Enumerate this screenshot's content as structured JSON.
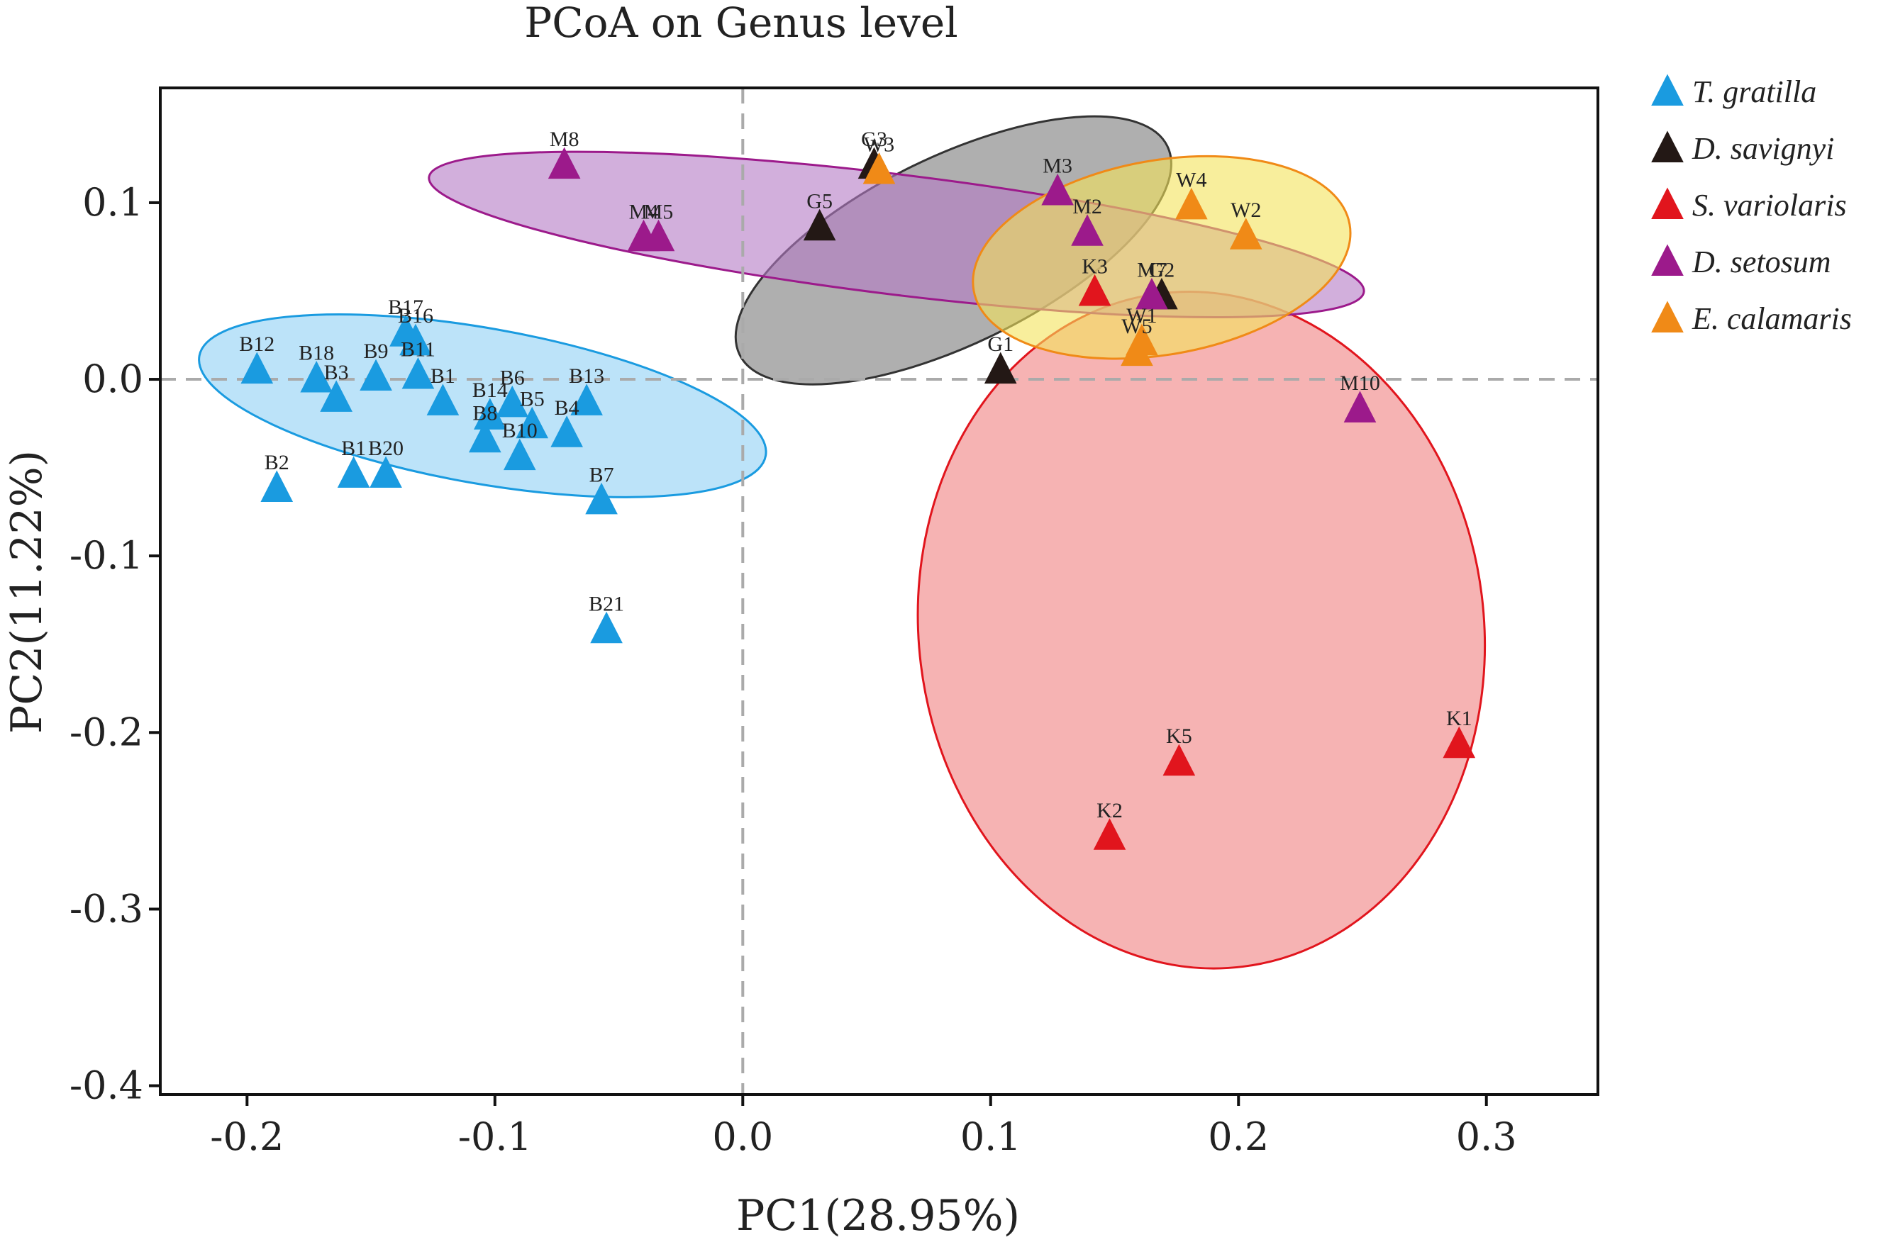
{
  "chart_data": {
    "type": "scatter",
    "title": "PCoA on Genus level",
    "xlabel": "PC1(28.95%)",
    "ylabel": "PC2(11.22%)",
    "xlim": [
      -0.235,
      0.345
    ],
    "ylim": [
      -0.405,
      0.165
    ],
    "xticks": [
      -0.2,
      -0.1,
      0.0,
      0.1,
      0.2,
      0.3
    ],
    "xtick_labels": [
      "-0.2",
      "-0.1",
      "0.0",
      "0.1",
      "0.2",
      "0.3"
    ],
    "yticks": [
      0.1,
      0.0,
      -0.1,
      -0.2,
      -0.3,
      -0.4
    ],
    "ytick_labels": [
      "0.1",
      "0.0",
      "-0.1",
      "-0.2",
      "-0.3",
      "-0.4"
    ],
    "zero_lines": true,
    "legend_position": "right",
    "series": [
      {
        "name": "T. gratilla",
        "color": "#1a9be0",
        "ellipse": {
          "cx": -0.105,
          "cy": -0.015,
          "rx": 0.116,
          "ry": 0.044,
          "angle_deg": 10,
          "fill": "#8fd0f5",
          "stroke": "#1a9be0"
        },
        "points": [
          {
            "label": "B12",
            "x": -0.196,
            "y": 0.006
          },
          {
            "label": "B18",
            "x": -0.172,
            "y": 0.001
          },
          {
            "label": "B3",
            "x": -0.164,
            "y": -0.01
          },
          {
            "label": "B9",
            "x": -0.148,
            "y": 0.002
          },
          {
            "label": "B17",
            "x": -0.136,
            "y": 0.027
          },
          {
            "label": "B16",
            "x": -0.132,
            "y": 0.022
          },
          {
            "label": "B11",
            "x": -0.131,
            "y": 0.003
          },
          {
            "label": "B1",
            "x": -0.121,
            "y": -0.012
          },
          {
            "label": "B14",
            "x": -0.102,
            "y": -0.02
          },
          {
            "label": "B6",
            "x": -0.093,
            "y": -0.013
          },
          {
            "label": "B5",
            "x": -0.085,
            "y": -0.025
          },
          {
            "label": "B4",
            "x": -0.071,
            "y": -0.03
          },
          {
            "label": "B13",
            "x": -0.063,
            "y": -0.012
          },
          {
            "label": "B8",
            "x": -0.104,
            "y": -0.033
          },
          {
            "label": "B10",
            "x": -0.09,
            "y": -0.043
          },
          {
            "label": "B1",
            "x": -0.157,
            "y": -0.053
          },
          {
            "label": "B20",
            "x": -0.144,
            "y": -0.053
          },
          {
            "label": "B2",
            "x": -0.188,
            "y": -0.061
          },
          {
            "label": "B7",
            "x": -0.057,
            "y": -0.068
          },
          {
            "label": "B21",
            "x": -0.055,
            "y": -0.141
          }
        ]
      },
      {
        "name": "D. savignyi",
        "color": "#231815",
        "ellipse": {
          "cx": 0.085,
          "cy": 0.073,
          "rx": 0.096,
          "ry": 0.053,
          "angle_deg": -26,
          "fill": "#7a7a7a",
          "stroke": "#333333"
        },
        "points": [
          {
            "label": "G3",
            "x": 0.053,
            "y": 0.122
          },
          {
            "label": "G5",
            "x": 0.031,
            "y": 0.087
          },
          {
            "label": "G2",
            "x": 0.169,
            "y": 0.048
          },
          {
            "label": "G1",
            "x": 0.104,
            "y": 0.006
          }
        ]
      },
      {
        "name": "S. variolaris",
        "color": "#e1151d",
        "ellipse": {
          "cx": 0.185,
          "cy": -0.142,
          "rx": 0.114,
          "ry": 0.192,
          "angle_deg": -7,
          "fill": "#f08080",
          "stroke": "#e1151d"
        },
        "points": [
          {
            "label": "K3",
            "x": 0.142,
            "y": 0.05
          },
          {
            "label": "K5",
            "x": 0.176,
            "y": -0.216
          },
          {
            "label": "K2",
            "x": 0.148,
            "y": -0.258
          },
          {
            "label": "K1",
            "x": 0.289,
            "y": -0.206
          }
        ]
      },
      {
        "name": "D. setosum",
        "color": "#9c1a8b",
        "ellipse": {
          "cx": 0.062,
          "cy": 0.082,
          "rx": 0.19,
          "ry": 0.034,
          "angle_deg": 7,
          "fill": "#b479c4",
          "stroke": "#9c1a8b"
        },
        "points": [
          {
            "label": "M8",
            "x": -0.072,
            "y": 0.122
          },
          {
            "label": "M4",
            "x": -0.04,
            "y": 0.081
          },
          {
            "label": "M5",
            "x": -0.034,
            "y": 0.081
          },
          {
            "label": "M3",
            "x": 0.127,
            "y": 0.107
          },
          {
            "label": "M2",
            "x": 0.139,
            "y": 0.084
          },
          {
            "label": "M7",
            "x": 0.165,
            "y": 0.048
          },
          {
            "label": "M10",
            "x": 0.249,
            "y": -0.016
          }
        ]
      },
      {
        "name": "E. calamaris",
        "color": "#f08a17",
        "ellipse": {
          "cx": 0.169,
          "cy": 0.069,
          "rx": 0.077,
          "ry": 0.055,
          "angle_deg": -10,
          "fill": "#f3e35a",
          "stroke": "#f08a17"
        },
        "points": [
          {
            "label": "W3",
            "x": 0.055,
            "y": 0.119
          },
          {
            "label": "W4",
            "x": 0.181,
            "y": 0.099
          },
          {
            "label": "W2",
            "x": 0.203,
            "y": 0.082
          },
          {
            "label": "W1",
            "x": 0.161,
            "y": 0.022
          },
          {
            "label": "W5",
            "x": 0.159,
            "y": 0.016
          }
        ]
      }
    ]
  }
}
